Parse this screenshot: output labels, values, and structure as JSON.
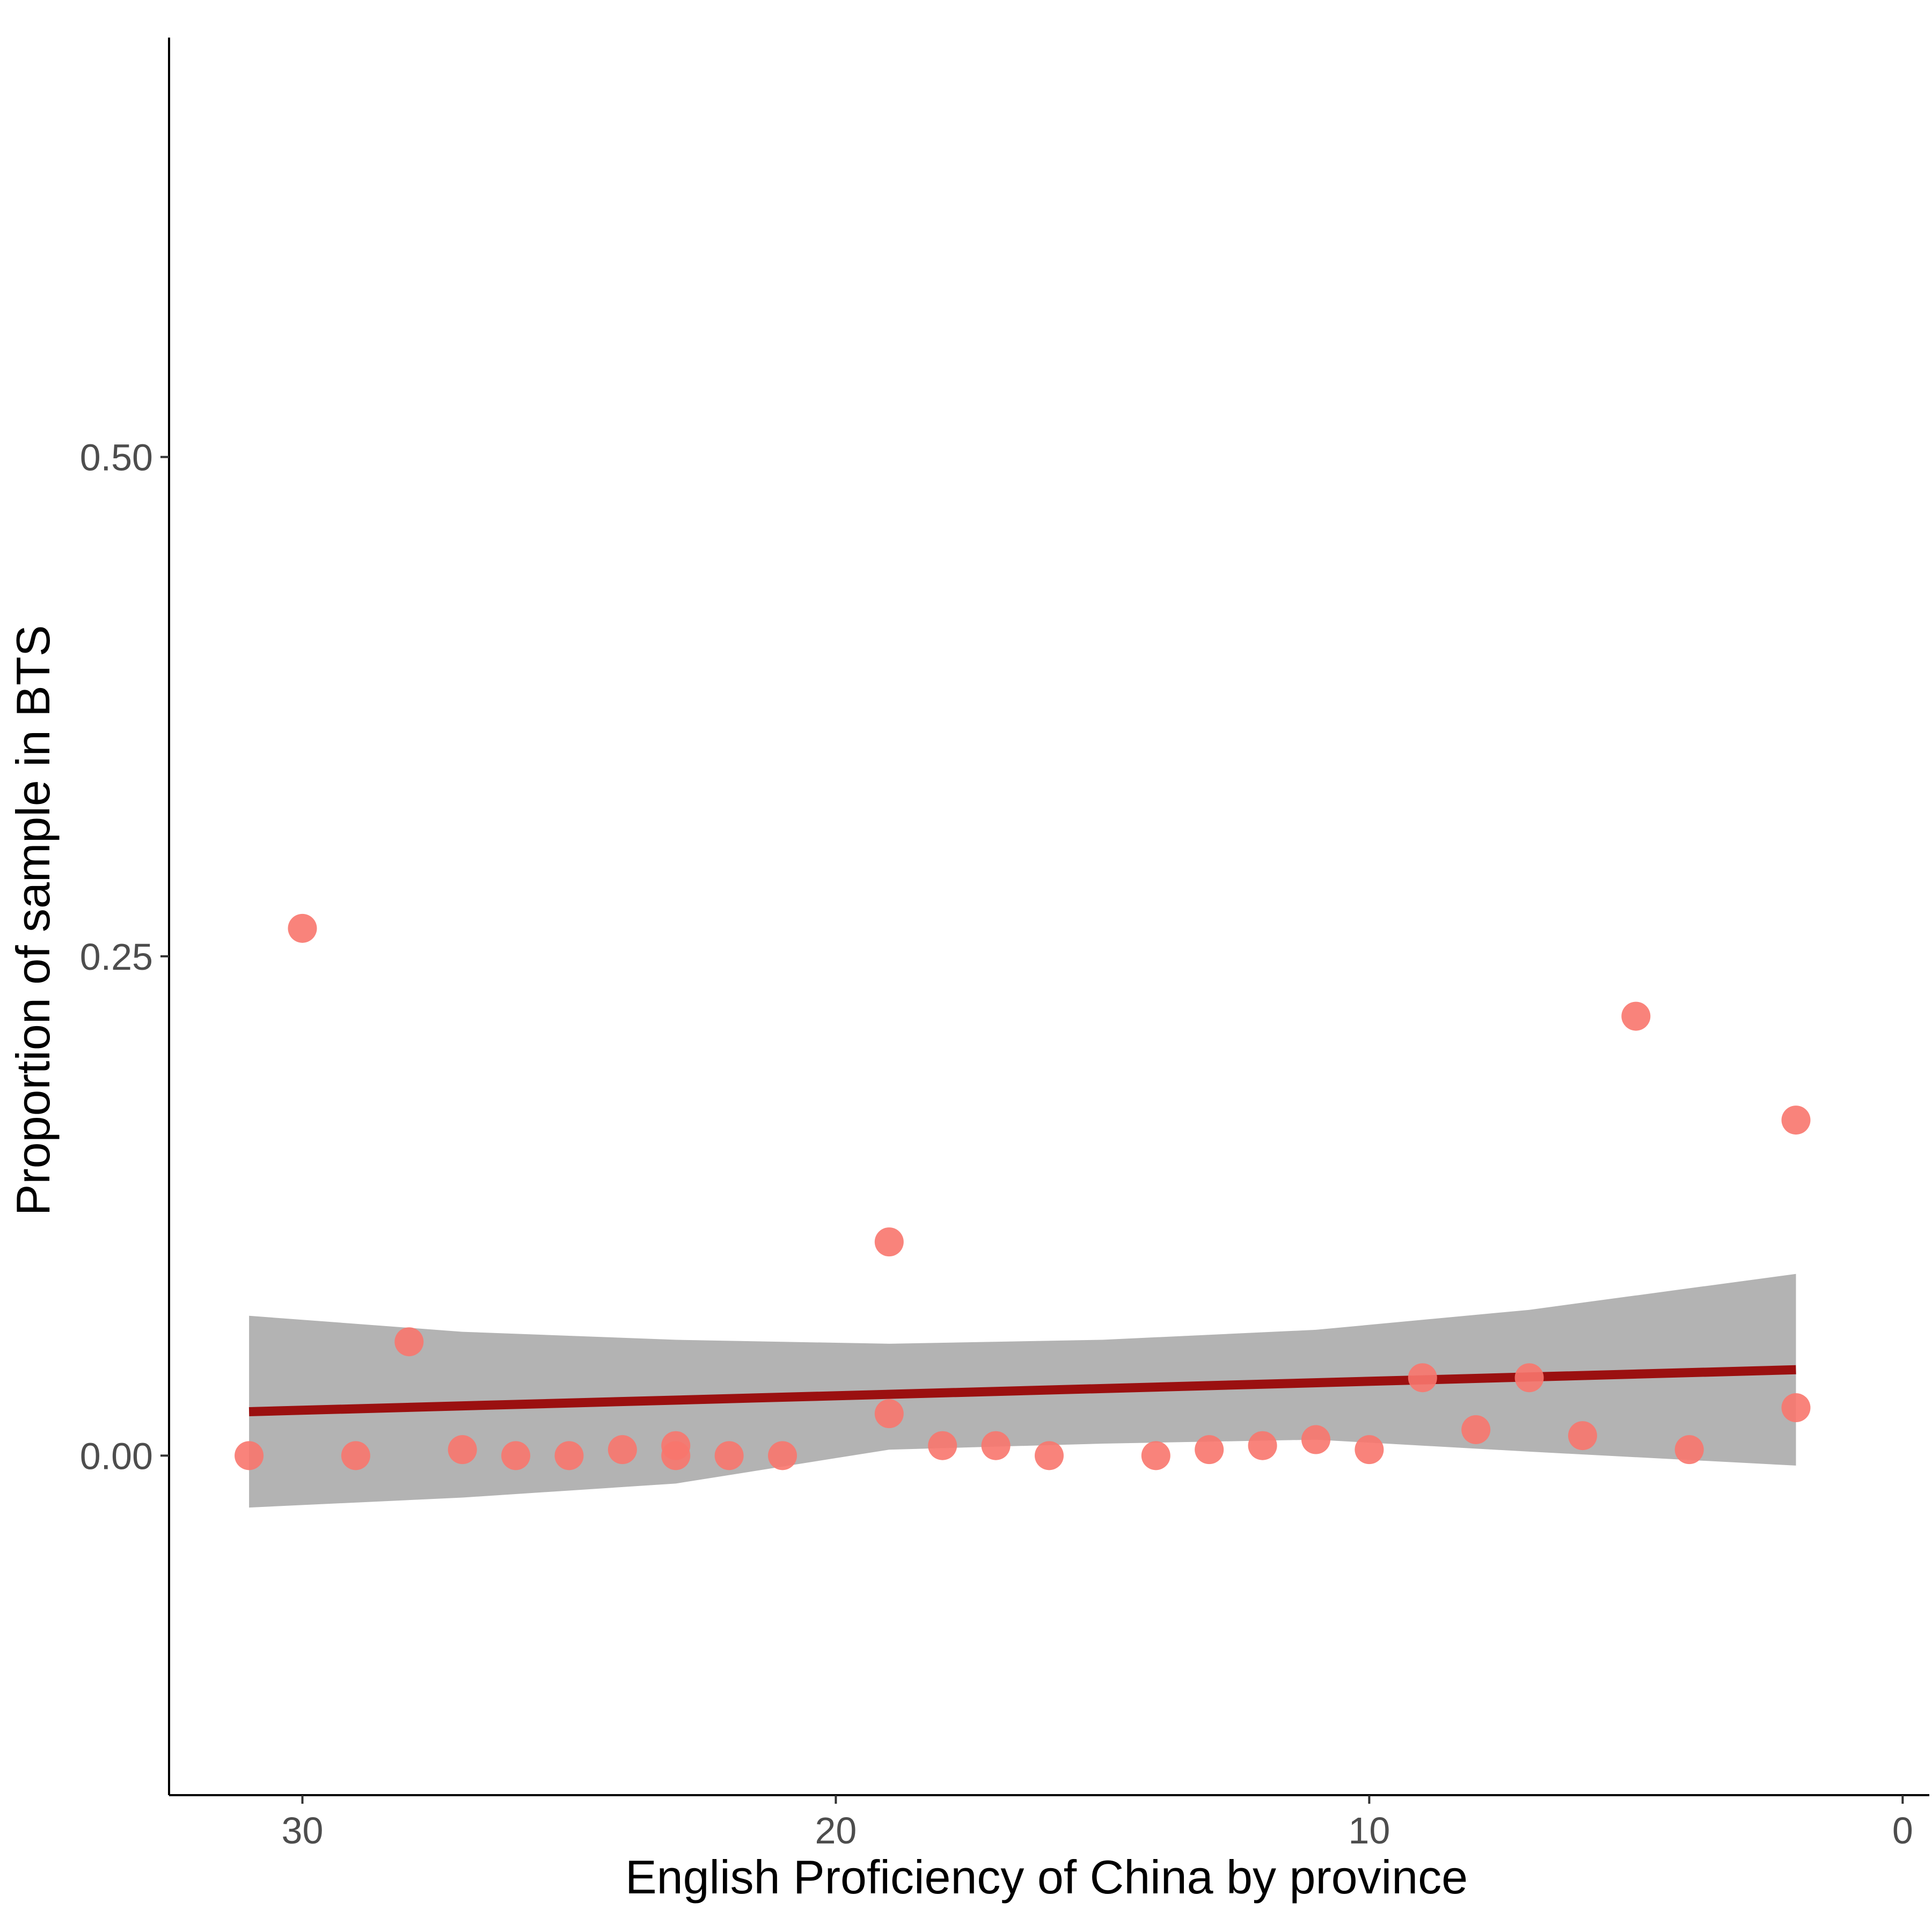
{
  "chart_data": {
    "type": "scatter",
    "title": "",
    "xlabel": "English Proficiency of China by province",
    "ylabel": "Proportion of sample in BTS",
    "x_reversed": true,
    "xlim": [
      32.5,
      -0.5
    ],
    "ylim": [
      -0.17,
      0.71
    ],
    "x_ticks": [
      30,
      20,
      10,
      0
    ],
    "y_ticks": [
      0.0,
      0.25,
      0.5
    ],
    "y_tick_labels": [
      "0.00",
      "0.25",
      "0.50"
    ],
    "grid": false,
    "legend": "none",
    "colors": {
      "points": "#F8766D",
      "fit_line": "#9B1010",
      "ci_band": "#999999",
      "axis": "#000000"
    },
    "points": [
      {
        "x": 31,
        "y": 0.0
      },
      {
        "x": 30,
        "y": 0.264
      },
      {
        "x": 29,
        "y": 0.0
      },
      {
        "x": 28,
        "y": 0.057
      },
      {
        "x": 27,
        "y": 0.003
      },
      {
        "x": 26,
        "y": 0.0
      },
      {
        "x": 25,
        "y": 0.0
      },
      {
        "x": 24,
        "y": 0.003
      },
      {
        "x": 23,
        "y": 0.005
      },
      {
        "x": 23,
        "y": 0.0
      },
      {
        "x": 22,
        "y": 0.0
      },
      {
        "x": 21,
        "y": 0.0
      },
      {
        "x": 19,
        "y": 0.107
      },
      {
        "x": 19,
        "y": 0.021
      },
      {
        "x": 18,
        "y": 0.005
      },
      {
        "x": 17,
        "y": 0.005
      },
      {
        "x": 16,
        "y": 0.0
      },
      {
        "x": 14,
        "y": 0.0
      },
      {
        "x": 13,
        "y": 0.003
      },
      {
        "x": 12,
        "y": 0.005
      },
      {
        "x": 11,
        "y": 0.008
      },
      {
        "x": 10,
        "y": 0.003
      },
      {
        "x": 9,
        "y": 0.039
      },
      {
        "x": 8,
        "y": 0.013
      },
      {
        "x": 7,
        "y": 0.039
      },
      {
        "x": 6,
        "y": 0.01
      },
      {
        "x": 5,
        "y": 0.22
      },
      {
        "x": 4,
        "y": 0.003
      },
      {
        "x": 2,
        "y": 0.168
      },
      {
        "x": 2,
        "y": 0.024
      }
    ],
    "fit_line": {
      "x": [
        31,
        2
      ],
      "y": [
        0.022,
        0.043
      ]
    },
    "confidence_band": [
      {
        "x": 31,
        "lower": -0.026,
        "upper": 0.07
      },
      {
        "x": 27,
        "lower": -0.021,
        "upper": 0.062
      },
      {
        "x": 23,
        "lower": -0.014,
        "upper": 0.058
      },
      {
        "x": 19,
        "lower": 0.003,
        "upper": 0.056
      },
      {
        "x": 15,
        "lower": 0.006,
        "upper": 0.058
      },
      {
        "x": 11,
        "lower": 0.008,
        "upper": 0.063
      },
      {
        "x": 7,
        "lower": 0.002,
        "upper": 0.073
      },
      {
        "x": 2,
        "lower": -0.005,
        "upper": 0.091
      }
    ]
  }
}
